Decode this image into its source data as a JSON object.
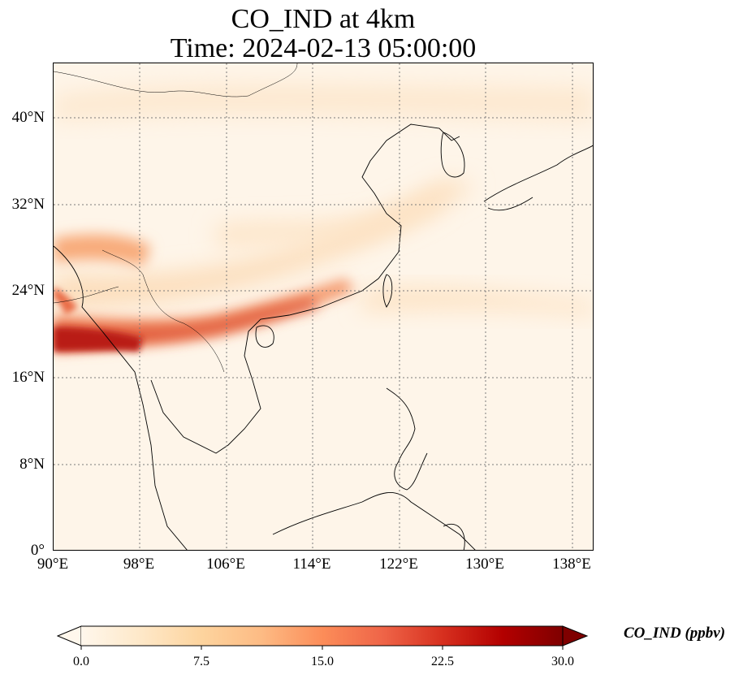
{
  "title_line1": "CO_IND at 4km",
  "title_line2": "Time: 2024-02-13 05:00:00",
  "map": {
    "lon_range": [
      90,
      140
    ],
    "lat_range": [
      0,
      45
    ],
    "gridlines": true,
    "lat_ticks": [
      "0°",
      "8°N",
      "16°N",
      "24°N",
      "32°N",
      "40°N"
    ],
    "lon_ticks": [
      "90°E",
      "98°E",
      "106°E",
      "114°E",
      "122°E",
      "130°E",
      "138°E"
    ]
  },
  "colorbar": {
    "label": "CO_IND (ppbv)",
    "colormap": "OrRd",
    "min": 0.0,
    "max": 30.0,
    "extend": "both",
    "ticks": [
      "0.0",
      "7.5",
      "15.0",
      "22.5",
      "30.0"
    ],
    "colors": [
      "#fff7ec",
      "#fee8c8",
      "#fdd49e",
      "#fdbb84",
      "#fc8d59",
      "#ef6548",
      "#d7301f",
      "#b30000",
      "#7f0000"
    ]
  }
}
